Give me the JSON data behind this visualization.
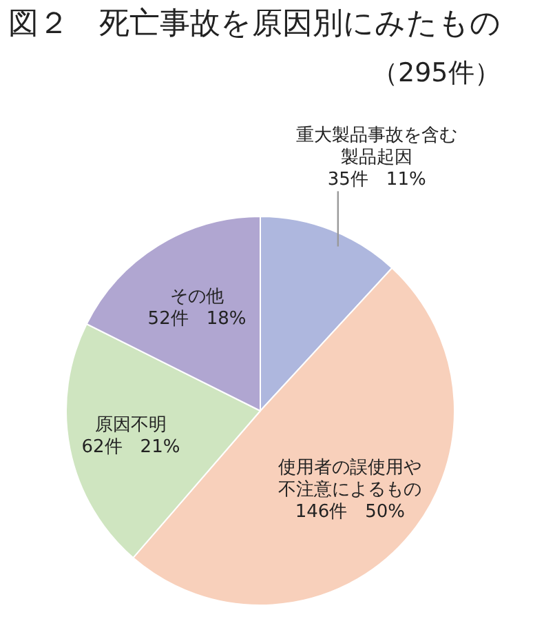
{
  "chart_data": {
    "type": "pie",
    "title": "図２　死亡事故を原因別にみたもの",
    "subtitle": "（295件）",
    "categories": [
      "重大製品事故を含む製品起因",
      "使用者の誤使用や不注意によるもの",
      "原因不明",
      "その他"
    ],
    "values": [
      35,
      146,
      62,
      52
    ],
    "value_labels": [
      "35件　11%",
      "146件　50%",
      "62件　21%",
      "52件　18%"
    ],
    "colors": [
      "#aeb7de",
      "#f8d0bb",
      "#cfe5c0",
      "#b0a6d1"
    ]
  }
}
